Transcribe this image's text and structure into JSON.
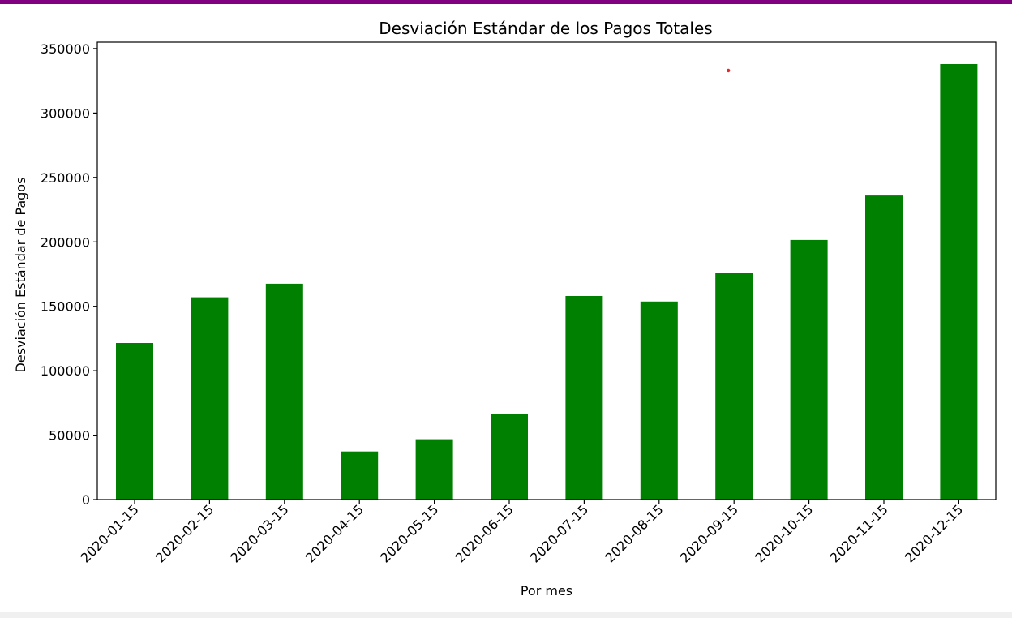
{
  "colors": {
    "accent": "#800080",
    "bar": "#008000",
    "marker": "#e8262a"
  },
  "chart_data": {
    "type": "bar",
    "title": "Desviación Estándar de los Pagos Totales",
    "xlabel": "Por mes",
    "ylabel": "Desviación Estándar de Pagos",
    "categories": [
      "2020-01-15",
      "2020-02-15",
      "2020-03-15",
      "2020-04-15",
      "2020-05-15",
      "2020-06-15",
      "2020-07-15",
      "2020-08-15",
      "2020-09-15",
      "2020-10-15",
      "2020-11-15",
      "2020-12-15"
    ],
    "values": [
      121500,
      157000,
      167500,
      37300,
      46800,
      66200,
      158000,
      153700,
      175700,
      201500,
      236000,
      338000
    ],
    "ylim": [
      0,
      355000
    ],
    "yticks": [
      0,
      50000,
      100000,
      150000,
      200000,
      250000,
      300000,
      350000
    ],
    "ytick_labels": [
      "0",
      "50000",
      "100000",
      "150000",
      "200000",
      "250000",
      "300000",
      "350000"
    ],
    "grid": false,
    "legend": "none",
    "marker_point": {
      "category": "2020-09-15",
      "y": 333000
    }
  }
}
